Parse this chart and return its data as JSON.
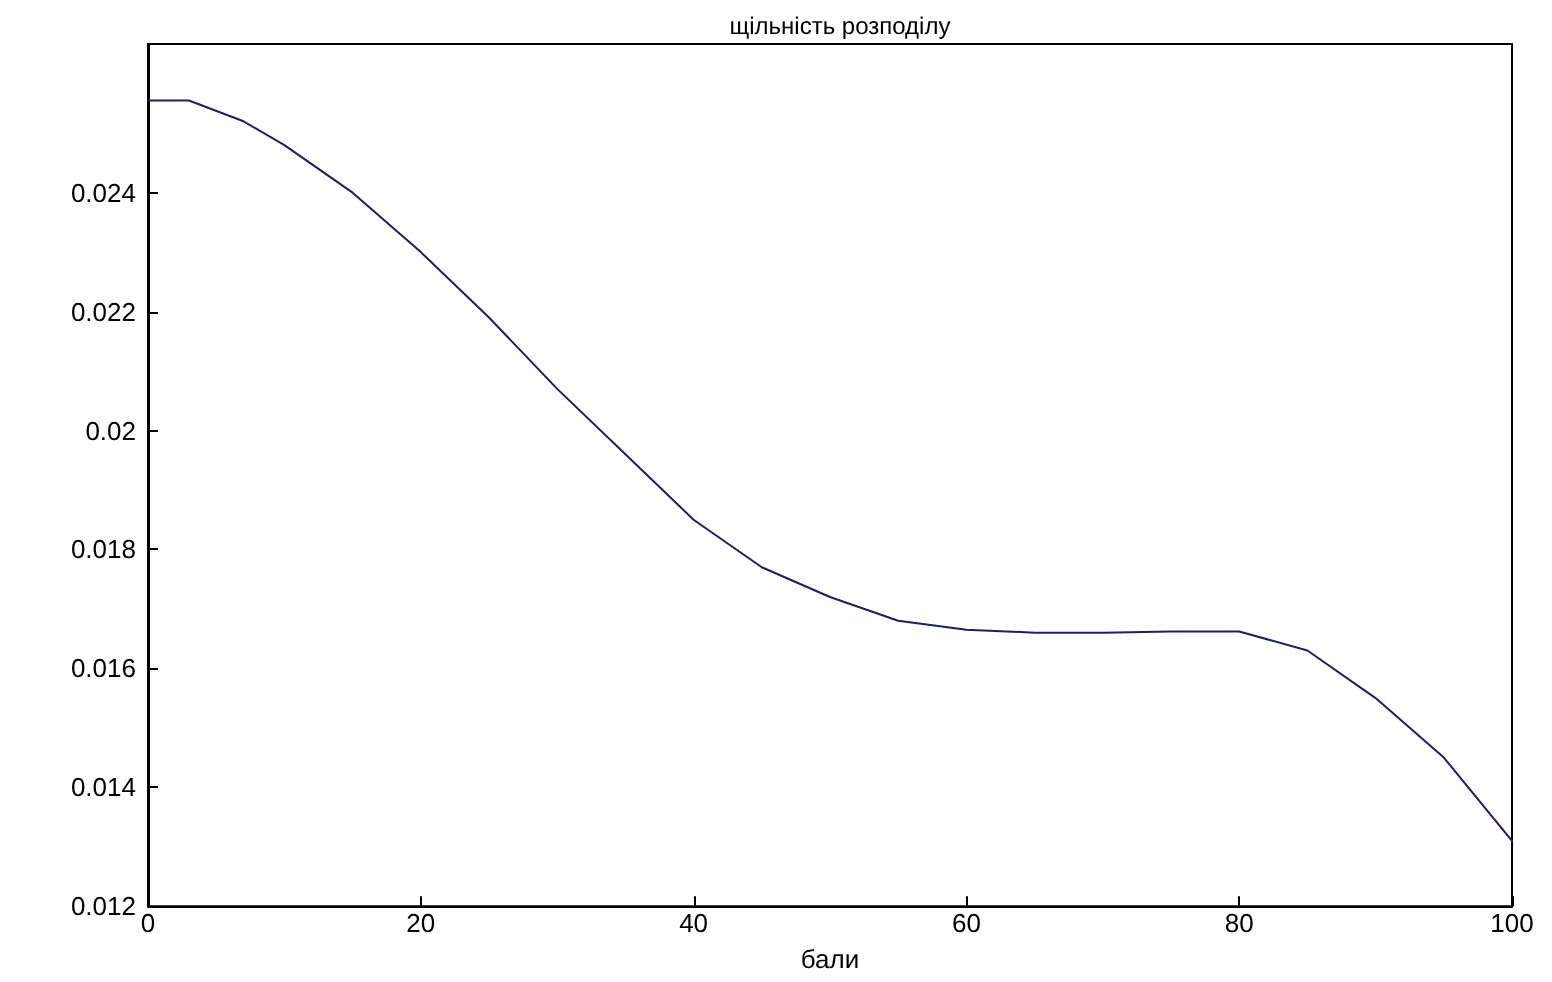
{
  "chart_data": {
    "type": "line",
    "title": "щільність розподілу",
    "xlabel": "бали",
    "x": [
      0,
      3,
      7,
      10,
      15,
      20,
      25,
      30,
      35,
      40,
      45,
      50,
      55,
      60,
      65,
      70,
      75,
      80,
      85,
      90,
      95,
      100
    ],
    "series": [
      {
        "color": "#1f1f5f",
        "values": [
          0.02555,
          0.02555,
          0.0252,
          0.0248,
          0.024,
          0.023,
          0.0219,
          0.0207,
          0.0196,
          0.0185,
          0.0177,
          0.0172,
          0.0168,
          0.01665,
          0.0166,
          0.0166,
          0.01662,
          0.01662,
          0.0163,
          0.0155,
          0.0145,
          0.0131
        ]
      }
    ],
    "xlim": [
      0,
      100
    ],
    "xticks": [
      0,
      20,
      40,
      60,
      80,
      100
    ],
    "ylim": [
      0.012,
      0.0265
    ],
    "yticks": [
      0.012,
      0.014,
      0.016,
      0.018,
      0.02,
      0.022,
      0.024
    ],
    "grid": false,
    "marker": "none",
    "line_style": "solid"
  }
}
